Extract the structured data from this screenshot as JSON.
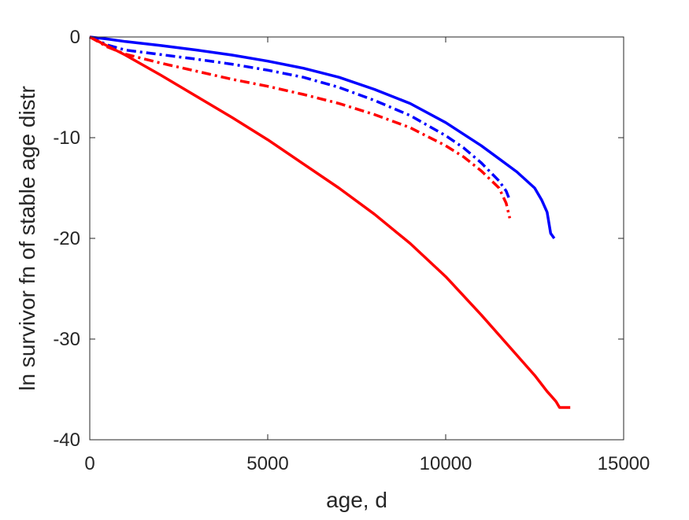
{
  "chart_data": {
    "type": "line",
    "title": "",
    "xlabel": "age, d",
    "ylabel": "ln survivor fn of stable age distr",
    "xlim": [
      0,
      15000
    ],
    "ylim": [
      -40,
      0
    ],
    "xticks": [
      0,
      5000,
      10000,
      15000
    ],
    "yticks": [
      0,
      -10,
      -20,
      -30,
      -40
    ],
    "xtick_labels": [
      "0",
      "5000",
      "10000",
      "15000"
    ],
    "ytick_labels": [
      "0",
      "-10",
      "-20",
      "-30",
      "-40"
    ],
    "grid": false,
    "legend": "none",
    "series": [
      {
        "color": "#0000ff",
        "style": "solid",
        "x": [
          0,
          500,
          1000,
          2000,
          3000,
          4000,
          5000,
          6000,
          7000,
          8000,
          9000,
          10000,
          11000,
          12000,
          12500,
          12700,
          12850,
          12950,
          13050
        ],
        "y": [
          0,
          -0.2,
          -0.45,
          -0.85,
          -1.3,
          -1.8,
          -2.4,
          -3.1,
          -4.0,
          -5.2,
          -6.6,
          -8.5,
          -10.8,
          -13.4,
          -15.0,
          -16.2,
          -17.4,
          -19.5,
          -20.0
        ]
      },
      {
        "color": "#0000ff",
        "style": "dashdot",
        "x": [
          0,
          500,
          1000,
          2000,
          3000,
          4000,
          5000,
          6000,
          7000,
          8000,
          9000,
          10000,
          10500,
          11000,
          11500,
          11700,
          11800
        ],
        "y": [
          0,
          -0.8,
          -1.3,
          -1.75,
          -2.2,
          -2.7,
          -3.3,
          -4.0,
          -5.0,
          -6.3,
          -7.8,
          -9.8,
          -11.0,
          -12.5,
          -14.3,
          -15.3,
          -16.2
        ]
      },
      {
        "color": "#ff0000",
        "style": "dashdot",
        "x": [
          0,
          500,
          1000,
          2000,
          3000,
          4000,
          5000,
          6000,
          7000,
          8000,
          9000,
          10000,
          10500,
          11000,
          11500,
          11700,
          11800
        ],
        "y": [
          0,
          -1.0,
          -1.7,
          -2.6,
          -3.4,
          -4.2,
          -4.9,
          -5.7,
          -6.6,
          -7.7,
          -9.0,
          -10.8,
          -11.9,
          -13.3,
          -15.0,
          -16.5,
          -18.0
        ]
      },
      {
        "color": "#ff0000",
        "style": "solid",
        "x": [
          0,
          500,
          1000,
          2000,
          3000,
          4000,
          5000,
          6000,
          7000,
          8000,
          9000,
          10000,
          11000,
          12000,
          12500,
          12850,
          13000,
          13100,
          13200,
          13500
        ],
        "y": [
          0,
          -0.9,
          -1.8,
          -3.8,
          -5.9,
          -8.0,
          -10.2,
          -12.6,
          -15.0,
          -17.6,
          -20.5,
          -23.8,
          -27.6,
          -31.6,
          -33.6,
          -35.2,
          -35.8,
          -36.2,
          -36.8,
          -36.8
        ]
      }
    ]
  }
}
